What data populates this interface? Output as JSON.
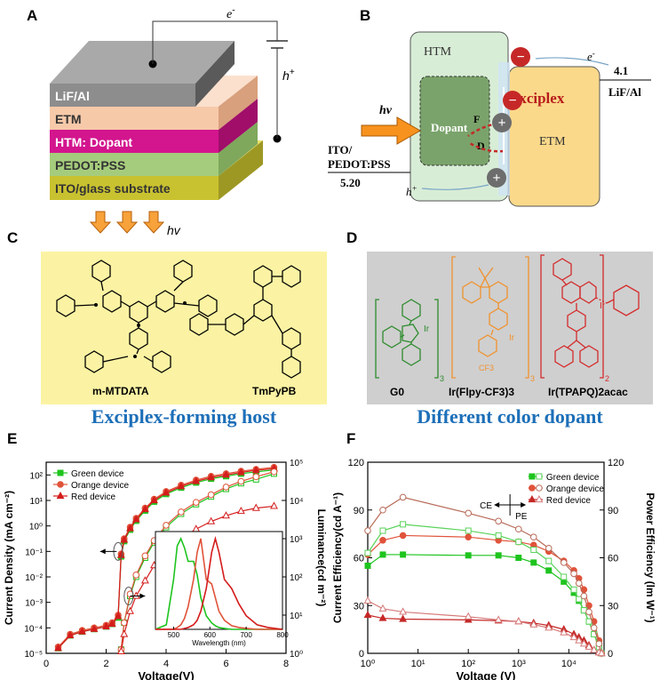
{
  "panels": {
    "A": "A",
    "B": "B",
    "C": "C",
    "D": "D",
    "E": "E",
    "F": "F"
  },
  "panel_a": {
    "layers": [
      "LiF/Al",
      "ETM",
      "HTM: Dopant",
      "PEDOT:PSS",
      "ITO/glass substrate"
    ],
    "electron": "e",
    "electron_sup": "-",
    "hole": "h",
    "hole_sup": "+",
    "light": "hv",
    "colors": {
      "lif": "#8d8d8d",
      "etm": "#f6c9a9",
      "htm": "#d3158e",
      "pedot": "#a5cc7c",
      "ito": "#c9c230"
    }
  },
  "panel_b": {
    "htm": "HTM",
    "etm": "ETM",
    "dopant": "Dopant",
    "exciplex": "Exciplex",
    "f_label": "F",
    "d_label": "D",
    "hv": "hv",
    "ito_line1": "ITO/",
    "ito_line2": "PEDOT:PSS",
    "ito_value": "5.20",
    "lif_value": "4.1",
    "lif_label": "LiF/Al",
    "electron": "e",
    "electron_sup": "-",
    "hole": "h",
    "hole_sup": "+",
    "minus": "−",
    "plus": "+"
  },
  "panel_c": {
    "left": "m-MTDATA",
    "right": "TmPyPB",
    "caption": "Exciplex-forming host"
  },
  "panel_d": {
    "g0": "G0",
    "orange": "Ir(Flpy-CF3)3",
    "red": "Ir(TPAPQ)2acac",
    "caption": "Different color dopant",
    "ir": "Ir",
    "cf3": "CF3",
    "sub3": "3",
    "sub2": "2"
  },
  "panel_e": {
    "xlabel": "Voltage(V)",
    "ylabel_left": "Current Density (mA cm⁻²)",
    "ylabel_right": "Luminance(cd m⁻²)",
    "x_ticks": [
      "0",
      "2",
      "4",
      "6",
      "8"
    ],
    "y_left_ticks": [
      "10⁻⁵",
      "10⁻⁴",
      "10⁻³",
      "10⁻²",
      "10⁻¹",
      "10⁰",
      "10¹",
      "10²"
    ],
    "y_right_ticks": [
      "10⁰",
      "10¹",
      "10²",
      "10³",
      "10⁴",
      "10⁵"
    ],
    "legend": [
      "Green device",
      "Orange device",
      "Red device"
    ],
    "inset_xlabel": "Wavelength (nm)",
    "inset_ticks": [
      "500",
      "600",
      "700",
      "800"
    ]
  },
  "panel_f": {
    "xlabel": "Voltage (V)",
    "ylabel_left": "Current Efficiency(cd A⁻¹)",
    "ylabel_right": "Power Efficiency (lm W⁻¹)",
    "x_ticks": [
      "10⁰",
      "10¹",
      "10²",
      "10³",
      "10⁴"
    ],
    "y_left_ticks": [
      "0",
      "30",
      "60",
      "90",
      "120"
    ],
    "y_right_ticks": [
      "0",
      "30",
      "60",
      "90",
      "120"
    ],
    "legend": [
      "Green device",
      "Orange device",
      "Red device"
    ],
    "ce": "CE",
    "pe": "PE"
  },
  "chart_data": [
    {
      "type": "line",
      "title": "E",
      "xlabel": "Voltage(V)",
      "ylabel": "Current Density (mA cm⁻²)",
      "y2label": "Luminance(cd m⁻²)",
      "xlim": [
        0,
        8
      ],
      "ylim_log10": [
        -5,
        2.5
      ],
      "y2lim_log10": [
        0,
        5
      ],
      "legend_position": "top-left",
      "colors": {
        "green": "#1ec41e",
        "orange": "#e0533a",
        "red": "#d41c1c"
      },
      "x": [
        0.4,
        0.8,
        1.2,
        1.6,
        2.0,
        2.2,
        2.4,
        2.5,
        2.6,
        2.8,
        3.0,
        3.3,
        3.6,
        4.0,
        4.5,
        5.0,
        5.5,
        6.0,
        6.5,
        7.0,
        7.6
      ],
      "current_series": [
        {
          "name": "Green device",
          "values": [
            -4.8,
            -4.3,
            -4.15,
            -4.05,
            -3.95,
            -3.85,
            -3.6,
            -1.2,
            -0.6,
            -0.15,
            0.2,
            0.6,
            0.95,
            1.25,
            1.5,
            1.7,
            1.85,
            1.95,
            2.05,
            2.12,
            2.2
          ]
        },
        {
          "name": "Orange device",
          "values": [
            -4.75,
            -4.25,
            -4.1,
            -4.0,
            -3.9,
            -3.8,
            -3.5,
            -1.1,
            -0.5,
            -0.05,
            0.3,
            0.7,
            1.05,
            1.35,
            1.6,
            1.8,
            1.95,
            2.05,
            2.15,
            2.22,
            2.3
          ]
        },
        {
          "name": "Red device",
          "values": [
            -4.8,
            -4.3,
            -4.15,
            -4.05,
            -3.95,
            -3.85,
            -3.55,
            -1.15,
            -0.55,
            -0.1,
            0.25,
            0.65,
            1.0,
            1.3,
            1.55,
            1.75,
            1.9,
            2.0,
            2.1,
            2.18,
            2.25
          ]
        }
      ],
      "luminance_x": [
        2.5,
        2.6,
        2.8,
        3.0,
        3.3,
        3.6,
        4.0,
        4.5,
        5.0,
        5.5,
        6.0,
        6.5,
        7.0,
        7.6
      ],
      "luminance_series": [
        {
          "name": "Green device",
          "values": [
            0.1,
            0.8,
            1.5,
            2.0,
            2.5,
            2.9,
            3.3,
            3.65,
            3.9,
            4.1,
            4.3,
            4.45,
            4.55,
            4.7
          ]
        },
        {
          "name": "Orange device",
          "values": [
            0.1,
            0.8,
            1.55,
            2.05,
            2.55,
            2.95,
            3.35,
            3.7,
            3.95,
            4.15,
            4.35,
            4.5,
            4.62,
            4.75
          ]
        },
        {
          "name": "Red device",
          "values": [
            0.05,
            0.5,
            1.1,
            1.5,
            1.9,
            2.3,
            2.65,
            3.0,
            3.25,
            3.45,
            3.6,
            3.72,
            3.8,
            3.85
          ]
        }
      ],
      "inset": {
        "type": "line",
        "xlabel": "Wavelength (nm)",
        "xlim": [
          450,
          800
        ],
        "x": [
          450,
          480,
          500,
          510,
          520,
          530,
          540,
          555,
          565,
          575,
          590,
          605,
          615,
          625,
          640,
          660,
          680,
          700,
          730,
          760,
          800
        ],
        "series": [
          {
            "name": "Green device",
            "values": [
              0,
              0.05,
              0.55,
              0.92,
              1.0,
              0.9,
              0.75,
              0.75,
              0.6,
              0.35,
              0.15,
              0.07,
              0.04,
              0.02,
              0.01,
              0,
              0,
              0,
              0,
              0,
              0
            ]
          },
          {
            "name": "Orange device",
            "values": [
              0,
              0,
              0,
              0.02,
              0.05,
              0.12,
              0.25,
              0.55,
              0.85,
              1.0,
              0.55,
              0.5,
              0.35,
              0.2,
              0.1,
              0.04,
              0.02,
              0.01,
              0,
              0,
              0
            ]
          },
          {
            "name": "Red device",
            "values": [
              0,
              0,
              0,
              0,
              0,
              0.01,
              0.02,
              0.05,
              0.1,
              0.2,
              0.45,
              0.85,
              1.0,
              0.85,
              0.55,
              0.45,
              0.28,
              0.15,
              0.05,
              0.02,
              0
            ]
          }
        ]
      }
    },
    {
      "type": "line",
      "title": "F",
      "xlabel": "Voltage (V)",
      "ylabel": "Current Efficiency(cd A⁻¹)",
      "y2label": "Power Efficiency (lm W⁻¹)",
      "x_scale": "log",
      "xlim_log10": [
        0,
        4.7
      ],
      "ylim": [
        0,
        120
      ],
      "y2lim": [
        0,
        120
      ],
      "legend_position": "top-right",
      "x_log10": [
        0,
        0.3,
        0.7,
        2.0,
        2.6,
        3.0,
        3.3,
        3.6,
        3.9,
        4.1,
        4.2,
        4.3,
        4.4,
        4.5,
        4.6,
        4.65
      ],
      "ce_series": [
        {
          "name": "Green device",
          "values": [
            55,
            62,
            62,
            61.5,
            61.5,
            60,
            57,
            52,
            45,
            38,
            33,
            27,
            20,
            12,
            4,
            0
          ]
        },
        {
          "name": "Orange device",
          "values": [
            62,
            71,
            74,
            73,
            71,
            70,
            68,
            64,
            58,
            52,
            47,
            40,
            30,
            20,
            8,
            0
          ]
        },
        {
          "name": "Red device",
          "values": [
            24,
            22,
            21.5,
            21,
            20.5,
            20,
            19,
            17.5,
            15,
            12,
            10,
            8,
            5,
            2,
            0.5,
            0
          ]
        }
      ],
      "pe_series": [
        {
          "name": "Green device",
          "values": [
            63,
            77,
            81,
            77,
            74,
            70,
            65,
            58,
            48,
            40,
            34,
            27,
            20,
            12,
            4,
            0
          ]
        },
        {
          "name": "Orange device",
          "values": [
            77,
            90,
            98,
            88,
            83,
            78,
            73,
            66,
            57,
            50,
            44,
            36,
            26,
            16,
            6,
            0
          ]
        },
        {
          "name": "Red device",
          "values": [
            33,
            28,
            26,
            23,
            21,
            20,
            18,
            16,
            13,
            10,
            8,
            6,
            4,
            2,
            0.5,
            0
          ]
        }
      ]
    }
  ]
}
